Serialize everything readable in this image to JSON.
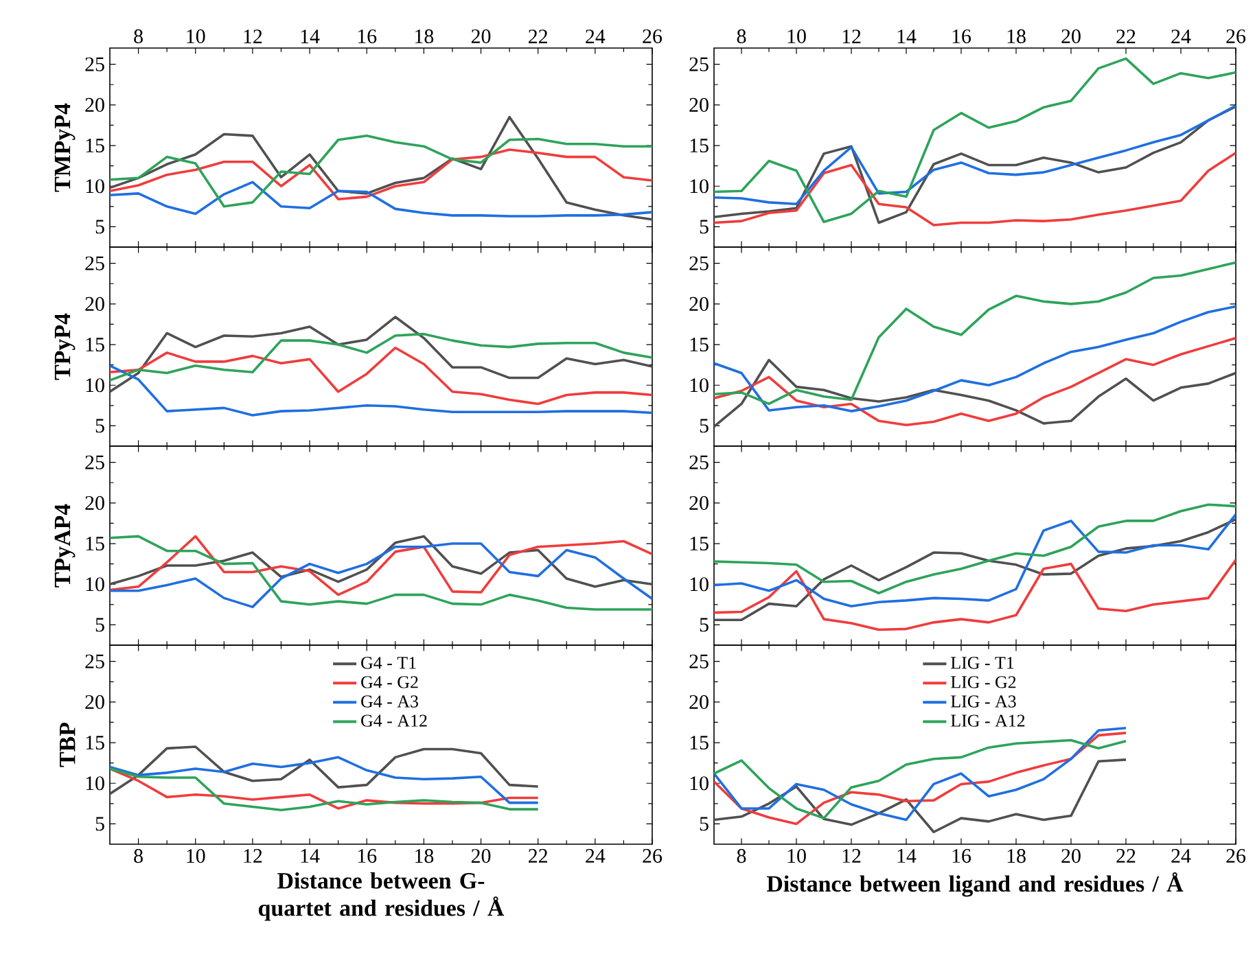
{
  "chart_data": [
    {
      "type": "line",
      "ylabel": "TMPyP4",
      "x": [
        7,
        8,
        9,
        10,
        11,
        12,
        13,
        14,
        15,
        16,
        17,
        18,
        19,
        20,
        21,
        22,
        23,
        24,
        25,
        26
      ],
      "xlim": [
        7,
        26
      ],
      "xticks": [
        8,
        10,
        12,
        14,
        16,
        18,
        20,
        22,
        24,
        26
      ],
      "ylim": [
        2.5,
        27
      ],
      "yticks": [
        5,
        10,
        15,
        20,
        25
      ],
      "series": [
        {
          "color": "#505050",
          "values": [
            9.8,
            11,
            12.7,
            13.9,
            16.4,
            16.2,
            11.1,
            13.9,
            9.4,
            9.1,
            10.4,
            11,
            13.4,
            12.1,
            18.5,
            13.4,
            8,
            7.1,
            6.4,
            5.9
          ]
        },
        {
          "color": "#f03c3c",
          "values": [
            9.4,
            10.1,
            11.4,
            12,
            13,
            13,
            10,
            12.6,
            8.4,
            8.7,
            10,
            10.5,
            13.3,
            13.6,
            14.5,
            14.1,
            13.6,
            13.6,
            11.1,
            10.7
          ]
        },
        {
          "color": "#1f6fe0",
          "values": [
            8.9,
            9.1,
            7.5,
            6.6,
            9,
            10.5,
            7.5,
            7.3,
            9.4,
            9.3,
            7.2,
            6.7,
            6.4,
            6.4,
            6.3,
            6.3,
            6.4,
            6.4,
            6.5,
            6.8
          ]
        },
        {
          "color": "#2ea35a",
          "values": [
            10.8,
            11,
            13.6,
            12.8,
            7.5,
            8,
            11.8,
            11.5,
            15.7,
            16.2,
            15.4,
            14.9,
            13.3,
            12.9,
            15.7,
            15.8,
            15.2,
            15.2,
            14.9,
            14.9
          ]
        }
      ]
    },
    {
      "type": "line",
      "x": [
        7,
        8,
        9,
        10,
        11,
        12,
        13,
        14,
        15,
        16,
        17,
        18,
        19,
        20,
        21,
        22,
        23,
        24,
        25,
        26
      ],
      "xlim": [
        7,
        26
      ],
      "xticks": [
        8,
        10,
        12,
        14,
        16,
        18,
        20,
        22,
        24,
        26
      ],
      "ylim": [
        2.5,
        27
      ],
      "yticks": [
        5,
        10,
        15,
        20,
        25
      ],
      "series": [
        {
          "color": "#505050",
          "values": [
            6.2,
            6.6,
            6.9,
            7.3,
            14,
            14.9,
            5.5,
            6.8,
            12.7,
            14,
            12.6,
            12.6,
            13.5,
            12.9,
            11.7,
            12.3,
            14.1,
            15.4,
            18.1,
            19.8
          ]
        },
        {
          "color": "#f03c3c",
          "values": [
            5.5,
            5.7,
            6.7,
            7,
            11.6,
            12.6,
            7.8,
            7.4,
            5.2,
            5.5,
            5.5,
            5.8,
            5.7,
            5.9,
            6.5,
            7,
            7.6,
            8.2,
            11.9,
            14.1
          ]
        },
        {
          "color": "#1f6fe0",
          "values": [
            8.6,
            8.5,
            8,
            7.8,
            11.9,
            14.8,
            9.1,
            9.3,
            12,
            12.9,
            11.6,
            11.4,
            11.7,
            12.6,
            13.5,
            14.4,
            15.4,
            16.3,
            18.1,
            19.9
          ]
        },
        {
          "color": "#2ea35a",
          "values": [
            9.3,
            9.4,
            13.1,
            11.9,
            5.6,
            6.6,
            9.4,
            8.7,
            16.9,
            19,
            17.2,
            18,
            19.7,
            20.5,
            24.5,
            25.7,
            22.6,
            23.9,
            23.3,
            24
          ]
        }
      ]
    },
    {
      "type": "line",
      "ylabel": "TPyP4",
      "tick_labels": "y",
      "x": [
        7,
        8,
        9,
        10,
        11,
        12,
        13,
        14,
        15,
        16,
        17,
        18,
        19,
        20,
        21,
        22,
        23,
        24,
        25,
        26
      ],
      "xlim": [
        7,
        26
      ],
      "xticks": [
        8,
        10,
        12,
        14,
        16,
        18,
        20,
        22,
        24,
        26
      ],
      "ylim": [
        2.5,
        27
      ],
      "yticks": [
        5,
        10,
        15,
        20,
        25
      ],
      "series": [
        {
          "color": "#505050",
          "values": [
            9.2,
            11.5,
            16.4,
            14.7,
            16.1,
            16,
            16.4,
            17.2,
            15,
            15.6,
            18.4,
            15.8,
            12.2,
            12.2,
            10.9,
            10.9,
            13.3,
            12.6,
            13.1,
            12.3
          ]
        },
        {
          "color": "#f03c3c",
          "values": [
            11.6,
            11.9,
            14,
            12.9,
            12.9,
            13.6,
            12.7,
            13.2,
            9.2,
            11.4,
            14.6,
            12.6,
            9.2,
            8.9,
            8.2,
            7.7,
            8.8,
            9.1,
            9.1,
            8.8
          ]
        },
        {
          "color": "#1f6fe0",
          "values": [
            12.4,
            10.7,
            6.8,
            7,
            7.2,
            6.3,
            6.8,
            6.9,
            7.2,
            7.5,
            7.4,
            7,
            6.7,
            6.7,
            6.7,
            6.7,
            6.8,
            6.8,
            6.8,
            6.6
          ]
        },
        {
          "color": "#2ea35a",
          "values": [
            10.6,
            11.9,
            11.5,
            12.4,
            11.9,
            11.6,
            15.5,
            15.5,
            15,
            14,
            16.1,
            16.3,
            15.5,
            14.9,
            14.7,
            15.1,
            15.2,
            15.2,
            14,
            13.4
          ]
        }
      ]
    },
    {
      "type": "line",
      "tick_labels": "y",
      "x": [
        7,
        8,
        9,
        10,
        11,
        12,
        13,
        14,
        15,
        16,
        17,
        18,
        19,
        20,
        21,
        22,
        23,
        24,
        25,
        26
      ],
      "xlim": [
        7,
        26
      ],
      "xticks": [
        8,
        10,
        12,
        14,
        16,
        18,
        20,
        22,
        24,
        26
      ],
      "ylim": [
        2.5,
        27
      ],
      "yticks": [
        5,
        10,
        15,
        20,
        25
      ],
      "series": [
        {
          "color": "#505050",
          "values": [
            4.9,
            7.7,
            13.1,
            9.8,
            9.4,
            8.4,
            8,
            8.5,
            9.4,
            8.8,
            8.1,
            6.9,
            5.3,
            5.6,
            8.6,
            10.8,
            8.1,
            9.7,
            10.2,
            11.5
          ]
        },
        {
          "color": "#f03c3c",
          "values": [
            8.4,
            9.3,
            11,
            8.1,
            7.3,
            7.7,
            5.6,
            5.1,
            5.5,
            6.5,
            5.6,
            6.5,
            8.5,
            9.8,
            11.5,
            13.2,
            12.5,
            13.8,
            14.8,
            15.8
          ]
        },
        {
          "color": "#1f6fe0",
          "values": [
            12.7,
            11.5,
            6.9,
            7.3,
            7.5,
            6.8,
            7.4,
            8.1,
            9.3,
            10.6,
            10,
            11,
            12.7,
            14.1,
            14.7,
            15.6,
            16.4,
            17.8,
            19,
            19.7
          ]
        },
        {
          "color": "#2ea35a",
          "values": [
            8.9,
            9.1,
            7.7,
            9.4,
            8.6,
            8.2,
            15.9,
            19.4,
            17.2,
            16.2,
            19.3,
            21,
            20.3,
            20,
            20.3,
            21.4,
            23.2,
            23.5,
            24.3,
            25.1
          ]
        }
      ]
    },
    {
      "type": "line",
      "ylabel": "TPyAP4",
      "tick_labels": "y",
      "x": [
        7,
        8,
        9,
        10,
        11,
        12,
        13,
        14,
        15,
        16,
        17,
        18,
        19,
        20,
        21,
        22,
        23,
        24,
        25,
        26
      ],
      "xlim": [
        7,
        26
      ],
      "xticks": [
        8,
        10,
        12,
        14,
        16,
        18,
        20,
        22,
        24,
        26
      ],
      "ylim": [
        2.5,
        27
      ],
      "yticks": [
        5,
        10,
        15,
        20,
        25
      ],
      "series": [
        {
          "color": "#505050",
          "values": [
            10,
            11,
            12.3,
            12.3,
            12.9,
            13.9,
            10.9,
            11.8,
            10.3,
            11.8,
            15.1,
            15.9,
            12.2,
            11.3,
            13.9,
            14.2,
            10.7,
            9.7,
            10.5,
            10
          ]
        },
        {
          "color": "#f03c3c",
          "values": [
            9.3,
            9.7,
            12.7,
            15.9,
            11.5,
            11.5,
            12.2,
            11.6,
            8.7,
            10.3,
            14,
            14.6,
            9.1,
            9,
            13.6,
            14.6,
            14.8,
            15,
            15.3,
            13.7
          ]
        },
        {
          "color": "#1f6fe0",
          "values": [
            9.2,
            9.2,
            9.9,
            10.7,
            8.3,
            7.2,
            10.7,
            12.5,
            11.4,
            12.5,
            14.6,
            14.6,
            15,
            15,
            11.5,
            11,
            14.2,
            13.3,
            10.7,
            8.2
          ]
        },
        {
          "color": "#2ea35a",
          "values": [
            15.7,
            15.9,
            14.1,
            14.1,
            12.5,
            12.6,
            7.9,
            7.5,
            7.9,
            7.6,
            8.7,
            8.7,
            7.6,
            7.5,
            8.7,
            8,
            7.1,
            6.9,
            6.9,
            6.9
          ]
        }
      ]
    },
    {
      "type": "line",
      "tick_labels": "y",
      "x": [
        7,
        8,
        9,
        10,
        11,
        12,
        13,
        14,
        15,
        16,
        17,
        18,
        19,
        20,
        21,
        22,
        23,
        24,
        25,
        26
      ],
      "xlim": [
        7,
        26
      ],
      "xticks": [
        8,
        10,
        12,
        14,
        16,
        18,
        20,
        22,
        24,
        26
      ],
      "ylim": [
        2.5,
        27
      ],
      "yticks": [
        5,
        10,
        15,
        20,
        25
      ],
      "series": [
        {
          "color": "#505050",
          "values": [
            5.6,
            5.6,
            7.6,
            7.3,
            10.6,
            12.3,
            10.5,
            12.1,
            13.9,
            13.8,
            12.9,
            12.4,
            11.2,
            11.3,
            13.5,
            14.4,
            14.7,
            15.3,
            16.4,
            18
          ]
        },
        {
          "color": "#f03c3c",
          "values": [
            6.5,
            6.6,
            8.4,
            11.6,
            5.7,
            5.2,
            4.4,
            4.5,
            5.3,
            5.7,
            5.3,
            6.2,
            11.9,
            12.5,
            7,
            6.7,
            7.5,
            7.9,
            8.3,
            13
          ]
        },
        {
          "color": "#1f6fe0",
          "values": [
            9.9,
            10.1,
            9.2,
            10.5,
            8.2,
            7.3,
            7.8,
            8,
            8.3,
            8.2,
            8,
            9.4,
            16.6,
            17.8,
            14,
            13.9,
            14.8,
            14.8,
            14.3,
            18.6
          ]
        },
        {
          "color": "#2ea35a",
          "values": [
            12.8,
            12.7,
            12.6,
            12.4,
            10.3,
            10.4,
            8.9,
            10.3,
            11.2,
            11.9,
            12.9,
            13.8,
            13.5,
            14.6,
            17.1,
            17.8,
            17.8,
            19,
            19.8,
            19.6
          ]
        }
      ]
    },
    {
      "type": "line",
      "ylabel": "TBP",
      "xlabel": "Distance between G-quartet and residues / Å",
      "legend": "top",
      "x": [
        7,
        8,
        9,
        10,
        11,
        12,
        13,
        14,
        15,
        16,
        17,
        18,
        19,
        20,
        21,
        22
      ],
      "xlim": [
        7,
        26
      ],
      "xticks": [
        8,
        10,
        12,
        14,
        16,
        18,
        20,
        22,
        24,
        26
      ],
      "ylim": [
        2.5,
        27
      ],
      "yticks": [
        5,
        10,
        15,
        20,
        25
      ],
      "series": [
        {
          "name": "G4 - T1",
          "color": "#505050",
          "values": [
            8.7,
            11,
            14.3,
            14.5,
            11.4,
            10.3,
            10.5,
            12.9,
            9.5,
            9.8,
            13.2,
            14.2,
            14.2,
            13.7,
            9.8,
            9.6
          ]
        },
        {
          "name": "G4 - G2",
          "color": "#f03c3c",
          "values": [
            11.8,
            10.3,
            8.3,
            8.6,
            8.4,
            8,
            8.3,
            8.6,
            6.9,
            7.9,
            7.6,
            7.5,
            7.5,
            7.6,
            8.2,
            8.2
          ]
        },
        {
          "name": "G4 - A3",
          "color": "#1f6fe0",
          "values": [
            12,
            11,
            11.3,
            11.8,
            11.4,
            12.4,
            12,
            12.5,
            13.2,
            11.6,
            10.7,
            10.5,
            10.6,
            10.8,
            7.6,
            7.6
          ]
        },
        {
          "name": "G4 - A12",
          "color": "#2ea35a",
          "values": [
            11.8,
            10.8,
            10.7,
            10.7,
            7.5,
            7.1,
            6.7,
            7.1,
            7.8,
            7.4,
            7.7,
            7.9,
            7.7,
            7.6,
            6.8,
            6.8
          ]
        }
      ]
    },
    {
      "type": "line",
      "xlabel": "Distance between ligand and residues / Å",
      "legend": "top",
      "x": [
        7,
        8,
        9,
        10,
        11,
        12,
        13,
        14,
        15,
        16,
        17,
        18,
        19,
        20,
        21,
        22
      ],
      "xlim": [
        7,
        26
      ],
      "xticks": [
        8,
        10,
        12,
        14,
        16,
        18,
        20,
        22,
        24,
        26
      ],
      "ylim": [
        2.5,
        27
      ],
      "yticks": [
        5,
        10,
        15,
        20,
        25
      ],
      "series": [
        {
          "name": "LIG - T1",
          "color": "#505050",
          "values": [
            5.5,
            5.9,
            7.5,
            9.6,
            5.6,
            4.9,
            6.3,
            8,
            4,
            5.7,
            5.3,
            6.2,
            5.5,
            6,
            12.7,
            12.9
          ]
        },
        {
          "name": "LIG - G2",
          "color": "#f03c3c",
          "values": [
            10.2,
            6.9,
            5.8,
            5,
            7.6,
            8.9,
            8.6,
            7.8,
            7.9,
            9.9,
            10.2,
            11.3,
            12.2,
            13,
            15.9,
            16.2
          ]
        },
        {
          "name": "LIG - A3",
          "color": "#1f6fe0",
          "values": [
            11.2,
            6.9,
            6.9,
            9.9,
            9.2,
            7.4,
            6.3,
            5.5,
            9.9,
            11.2,
            8.4,
            9.2,
            10.5,
            13,
            16.5,
            16.8
          ]
        },
        {
          "name": "LIG - A12",
          "color": "#2ea35a",
          "values": [
            11.2,
            12.8,
            9.4,
            6.9,
            5.7,
            9.5,
            10.3,
            12.3,
            13,
            13.2,
            14.4,
            14.9,
            15.1,
            15.3,
            14.3,
            15.2
          ]
        }
      ]
    }
  ]
}
